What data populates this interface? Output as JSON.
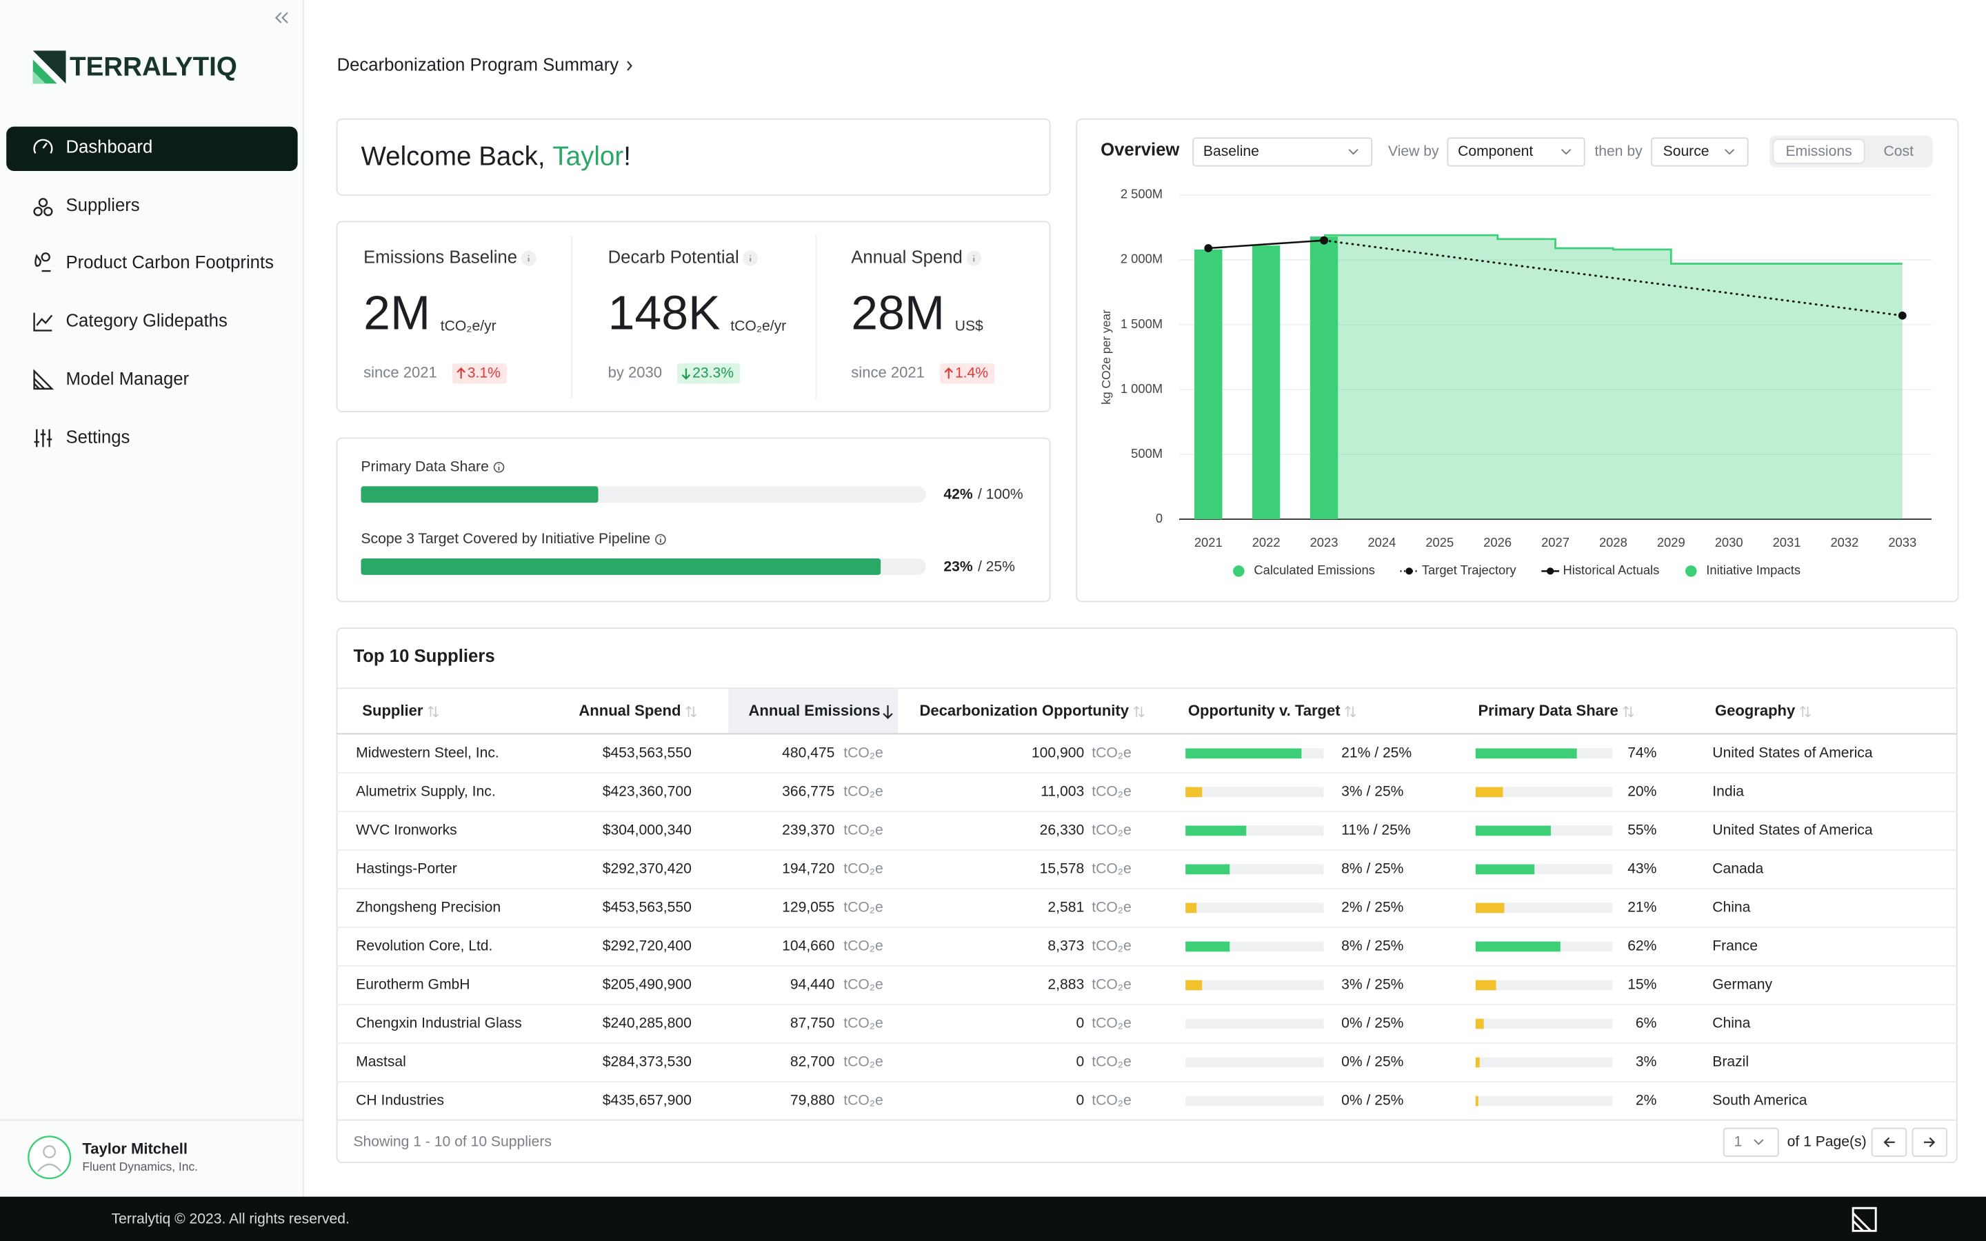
{
  "brand": "TERRALYTIQ",
  "nav": [
    "Dashboard",
    "Suppliers",
    "Product Carbon Footprints",
    "Category Glidepaths",
    "Model Manager",
    "Settings"
  ],
  "user": {
    "name": "Taylor Mitchell",
    "company": "Fluent Dynamics, Inc."
  },
  "breadcrumb": "Decarbonization Program Summary",
  "welcome": {
    "greeting": "Welcome Back, ",
    "name": "Taylor",
    "punct": "!"
  },
  "kpis": [
    {
      "label": "Emissions Baseline",
      "value": "2M",
      "unit": "tCO₂e/yr",
      "note": "since 2021",
      "change": "3.1%",
      "direction": "up"
    },
    {
      "label": "Decarb Potential",
      "value": "148K",
      "unit": "tCO₂e/yr",
      "note": "by 2030",
      "change": "23.3%",
      "direction": "down"
    },
    {
      "label": "Annual Spend",
      "value": "28M",
      "unit": "US$",
      "note": "since 2021",
      "change": "1.4%",
      "direction": "up"
    }
  ],
  "progress": [
    {
      "label": "Primary Data Share",
      "value": 42,
      "value_label": "42%",
      "max": 100,
      "max_label": "/ 100%"
    },
    {
      "label": "Scope 3 Target Covered by Initiative Pipeline",
      "value": 23,
      "value_label": "23%",
      "max": 25,
      "max_label": "/ 25%"
    }
  ],
  "overview": {
    "title": "Overview",
    "scenario": "Baseline",
    "view_by_label": "View by",
    "view_by": "Component",
    "then_by_label": "then by",
    "then_by": "Source",
    "toggle": [
      "Emissions",
      "Cost"
    ]
  },
  "chart_data": {
    "type": "bar",
    "y_label": "kg CO2e per year",
    "categories": [
      "2021",
      "2022",
      "2023",
      "2024",
      "2025",
      "2026",
      "2027",
      "2028",
      "2029",
      "2030",
      "2031",
      "2032",
      "2033"
    ],
    "ylim": [
      0,
      2500000000
    ],
    "yticks": [
      0,
      {
        "value": 500000000,
        "label": "500M"
      },
      {
        "value": 1000000000,
        "label": "1 000M"
      },
      {
        "value": 1500000000,
        "label": "1 500M"
      },
      {
        "value": 2000000000,
        "label": "2 000M"
      },
      {
        "value": 2500000000,
        "label": "2 500M"
      }
    ],
    "grid": true,
    "series": [
      {
        "name": "Calculated Emissions",
        "type": "bar",
        "color": "#3ccf78",
        "values": [
          2080000000,
          2110000000,
          2180000000,
          null,
          null,
          null,
          null,
          null,
          null,
          null,
          null,
          null,
          null
        ]
      },
      {
        "name": "Target Trajectory",
        "type": "line",
        "style": "dotted",
        "color": "#111111",
        "values": [
          null,
          null,
          2150000000,
          2092000000,
          2034000000,
          1976000000,
          1918000000,
          1860000000,
          1802000000,
          1744000000,
          1686000000,
          1628000000,
          1570000000
        ]
      },
      {
        "name": "Historical Actuals",
        "type": "line",
        "style": "solid",
        "color": "#111111",
        "values": [
          2090000000,
          2120000000,
          2150000000,
          null,
          null,
          null,
          null,
          null,
          null,
          null,
          null,
          null,
          null
        ]
      },
      {
        "name": "Initiative Impacts",
        "type": "area",
        "color": "#3ccf78",
        "values": [
          null,
          null,
          2190000000,
          2190000000,
          2190000000,
          2160000000,
          2090000000,
          2080000000,
          1970000000,
          1970000000,
          1970000000,
          1970000000,
          1970000000
        ]
      }
    ]
  },
  "table": {
    "title": "Top 10 Suppliers",
    "columns": [
      "Supplier",
      "Annual Spend",
      "Annual Emissions",
      "Decarbonization Opportunity",
      "Opportunity v. Target",
      "Primary Data Share",
      "Geography"
    ],
    "unit": "tCO₂e",
    "opportunity_target": 25,
    "rows": [
      {
        "supplier": "Midwestern Steel, Inc.",
        "spend": "$453,563,550",
        "emissions": "480,475",
        "opportunity": "100,900",
        "opp_pct": 21,
        "opp_label": "21% / 25%",
        "opp_color": "#3ccf78",
        "share": 74,
        "share_label": "74%",
        "share_color": "#3ccf78",
        "geography": "United States of America"
      },
      {
        "supplier": "Alumetrix Supply, Inc.",
        "spend": "$423,360,700",
        "emissions": "366,775",
        "opportunity": "11,003",
        "opp_pct": 3,
        "opp_label": "3% / 25%",
        "opp_color": "#f2c12e",
        "share": 20,
        "share_label": "20%",
        "share_color": "#f2c12e",
        "geography": "India"
      },
      {
        "supplier": "WVC Ironworks",
        "spend": "$304,000,340",
        "emissions": "239,370",
        "opportunity": "26,330",
        "opp_pct": 11,
        "opp_label": "11% / 25%",
        "opp_color": "#3ccf78",
        "share": 55,
        "share_label": "55%",
        "share_color": "#3ccf78",
        "geography": "United States of America"
      },
      {
        "supplier": "Hastings-Porter",
        "spend": "$292,370,420",
        "emissions": "194,720",
        "opportunity": "15,578",
        "opp_pct": 8,
        "opp_label": "8% / 25%",
        "opp_color": "#3ccf78",
        "share": 43,
        "share_label": "43%",
        "share_color": "#3ccf78",
        "geography": "Canada"
      },
      {
        "supplier": "Zhongsheng Precision",
        "spend": "$453,563,550",
        "emissions": "129,055",
        "opportunity": "2,581",
        "opp_pct": 2,
        "opp_label": "2% / 25%",
        "opp_color": "#f2c12e",
        "share": 21,
        "share_label": "21%",
        "share_color": "#f2c12e",
        "geography": "China"
      },
      {
        "supplier": "Revolution Core, Ltd.",
        "spend": "$292,720,400",
        "emissions": "104,660",
        "opportunity": "8,373",
        "opp_pct": 8,
        "opp_label": "8% / 25%",
        "opp_color": "#3ccf78",
        "share": 62,
        "share_label": "62%",
        "share_color": "#3ccf78",
        "geography": "France"
      },
      {
        "supplier": "Eurotherm GmbH",
        "spend": "$205,490,900",
        "emissions": "94,440",
        "opportunity": "2,883",
        "opp_pct": 3,
        "opp_label": "3% / 25%",
        "opp_color": "#f2c12e",
        "share": 15,
        "share_label": "15%",
        "share_color": "#f2c12e",
        "geography": "Germany"
      },
      {
        "supplier": "Chengxin Industrial Glass",
        "spend": "$240,285,800",
        "emissions": "87,750",
        "opportunity": "0",
        "opp_pct": 0,
        "opp_label": "0% / 25%",
        "opp_color": "#3ccf78",
        "share": 6,
        "share_label": "6%",
        "share_color": "#f2c12e",
        "geography": "China"
      },
      {
        "supplier": "Mastsal",
        "spend": "$284,373,530",
        "emissions": "82,700",
        "opportunity": "0",
        "opp_pct": 0,
        "opp_label": "0% / 25%",
        "opp_color": "#3ccf78",
        "share": 3,
        "share_label": "3%",
        "share_color": "#f2c12e",
        "geography": "Brazil"
      },
      {
        "supplier": "CH Industries",
        "spend": "$435,657,900",
        "emissions": "79,880",
        "opportunity": "0",
        "opp_pct": 0,
        "opp_label": "0% / 25%",
        "opp_color": "#3ccf78",
        "share": 2,
        "share_label": "2%",
        "share_color": "#f2c12e",
        "geography": "South America"
      }
    ],
    "summary": "Showing 1 - 10 of 10 Suppliers",
    "page": "1",
    "page_of": "of 1 Page(s)"
  },
  "footer": {
    "copyright": "Terralytiq © 2023. All rights reserved."
  }
}
